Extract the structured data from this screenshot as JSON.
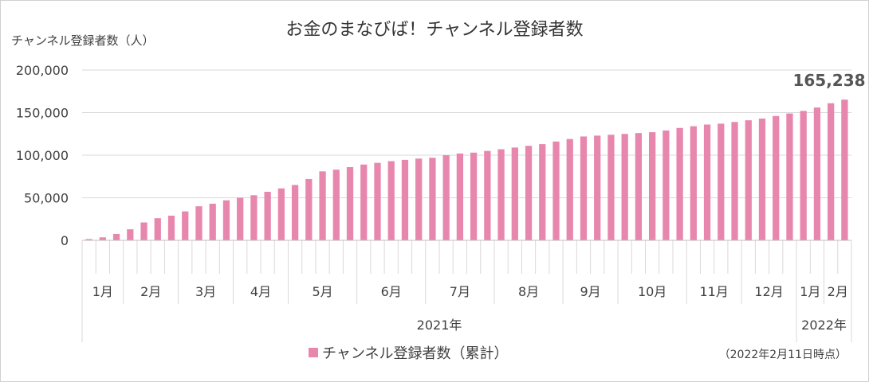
{
  "chart_data": {
    "type": "bar",
    "title": "お金のまなびば！チャンネル登録者数",
    "ylabel": "チャンネル登録者数（人）",
    "ylim": [
      0,
      200000
    ],
    "yticks": [
      0,
      50000,
      100000,
      150000,
      200000
    ],
    "ytick_labels": [
      "0",
      "50,000",
      "100,000",
      "150,000",
      "200,000"
    ],
    "grid": true,
    "legend": {
      "position": "bottom-center",
      "label": "チャンネル登録者数（累計）"
    },
    "color": "#E887AE",
    "series": [
      {
        "name": "チャンネル登録者数（累計）",
        "values": [
          1500,
          3500,
          7500,
          13000,
          21000,
          26000,
          29000,
          34000,
          40000,
          43000,
          47000,
          50000,
          53000,
          57000,
          61000,
          65000,
          72000,
          81000,
          83000,
          86000,
          89000,
          91000,
          93000,
          94500,
          96000,
          97000,
          100000,
          102000,
          103000,
          105000,
          107000,
          109000,
          111000,
          113000,
          116000,
          119000,
          122000,
          123000,
          124000,
          125000,
          126000,
          127000,
          129000,
          132000,
          134000,
          136000,
          137000,
          139000,
          141000,
          143000,
          146000,
          149000,
          152000,
          156000,
          161000,
          165238
        ]
      }
    ],
    "month_groups": [
      {
        "label": "1月",
        "count": 3
      },
      {
        "label": "2月",
        "count": 4
      },
      {
        "label": "3月",
        "count": 4
      },
      {
        "label": "4月",
        "count": 4
      },
      {
        "label": "5月",
        "count": 5
      },
      {
        "label": "6月",
        "count": 5
      },
      {
        "label": "7月",
        "count": 5
      },
      {
        "label": "8月",
        "count": 5
      },
      {
        "label": "9月",
        "count": 4
      },
      {
        "label": "10月",
        "count": 5
      },
      {
        "label": "11月",
        "count": 4
      },
      {
        "label": "12月",
        "count": 4
      },
      {
        "label": "1月",
        "count": 2
      },
      {
        "label": "2月",
        "count": 2
      }
    ],
    "year_groups": [
      {
        "label": "2021年",
        "months": 12
      },
      {
        "label": "2022年",
        "months": 2
      }
    ],
    "annotations": {
      "last_value_label": "165,238",
      "note": "（2022年2月11日時点）"
    }
  }
}
